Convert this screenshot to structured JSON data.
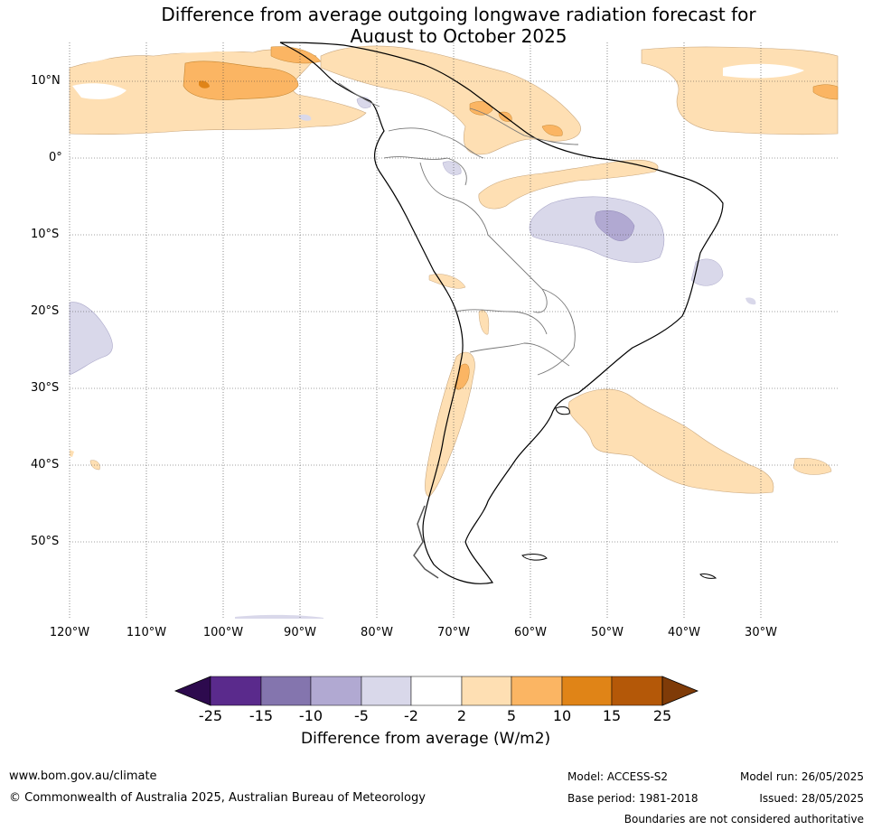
{
  "title": {
    "line1": "Difference from average outgoing longwave radiation forecast for",
    "line2": "August to October 2025"
  },
  "map": {
    "region": "South America",
    "lat_labels": [
      "10°N",
      "0°",
      "10°S",
      "20°S",
      "30°S",
      "40°S",
      "50°S"
    ],
    "lon_labels": [
      "120°W",
      "110°W",
      "100°W",
      "90°W",
      "80°W",
      "70°W",
      "60°W",
      "50°W",
      "40°W",
      "30°W"
    ],
    "lon_range": [
      -120,
      -20
    ],
    "lat_range": [
      -60,
      15
    ],
    "gridlines": true
  },
  "colorbar": {
    "title": "Difference from average (W/m2)",
    "ticks": [
      "-25",
      "-15",
      "-10",
      "-5",
      "-2",
      "2",
      "5",
      "10",
      "15",
      "25"
    ],
    "colors": [
      "#2d0a4e",
      "#5a2a8c",
      "#8475ae",
      "#b1a9d2",
      "#d9d8ea",
      "#ffffff",
      "#fedfb3",
      "#fbb563",
      "#e08417",
      "#b45808",
      "#7f3b08"
    ]
  },
  "footer": {
    "website": "www.bom.gov.au/climate",
    "copyright": "© Commonwealth of Australia 2025, Australian Bureau of Meteorology",
    "model": "Model: ACCESS-S2",
    "base_period": "Base period: 1981-2018",
    "model_run": "Model run: 26/05/2025",
    "issued": "Issued: 28/05/2025",
    "disclaimer": "Boundaries are not considered authoritative"
  }
}
